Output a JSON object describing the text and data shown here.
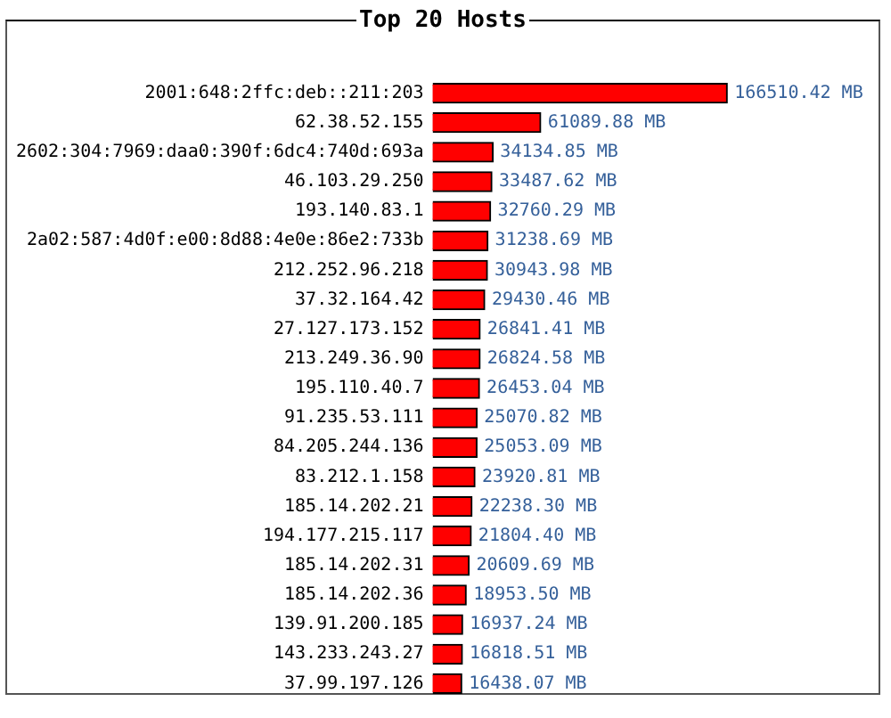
{
  "chart_data": {
    "type": "bar",
    "orientation": "horizontal",
    "title": "Top 20 Hosts",
    "categories": [
      "2001:648:2ffc:deb::211:203",
      "62.38.52.155",
      "2602:304:7969:daa0:390f:6dc4:740d:693a",
      "46.103.29.250",
      "193.140.83.1",
      "2a02:587:4d0f:e00:8d88:4e0e:86e2:733b",
      "212.252.96.218",
      "37.32.164.42",
      "27.127.173.152",
      "213.249.36.90",
      "195.110.40.7",
      "91.235.53.111",
      "84.205.244.136",
      "83.212.1.158",
      "185.14.202.21",
      "194.177.215.117",
      "185.14.202.31",
      "185.14.202.36",
      "139.91.200.185",
      "143.233.243.27",
      "37.99.197.126"
    ],
    "values": [
      166510.42,
      61089.88,
      34134.85,
      33487.62,
      32760.29,
      31238.69,
      30943.98,
      29430.46,
      26841.41,
      26824.58,
      26453.04,
      25070.82,
      25053.09,
      23920.81,
      22238.3,
      21804.4,
      20609.69,
      18953.5,
      16937.24,
      16818.51,
      16438.07
    ],
    "value_labels": [
      "166510.42 MB",
      "61089.88 MB",
      "34134.85 MB",
      "33487.62 MB",
      "32760.29 MB",
      "31238.69 MB",
      "30943.98 MB",
      "29430.46 MB",
      "26841.41 MB",
      "26824.58 MB",
      "26453.04 MB",
      "25070.82 MB",
      "25053.09 MB",
      "23920.81 MB",
      "22238.30 MB",
      "21804.40 MB",
      "20609.69 MB",
      "18953.50 MB",
      "16937.24 MB",
      "16818.51 MB",
      "16438.07 MB"
    ],
    "color": "#ff0000"
  }
}
